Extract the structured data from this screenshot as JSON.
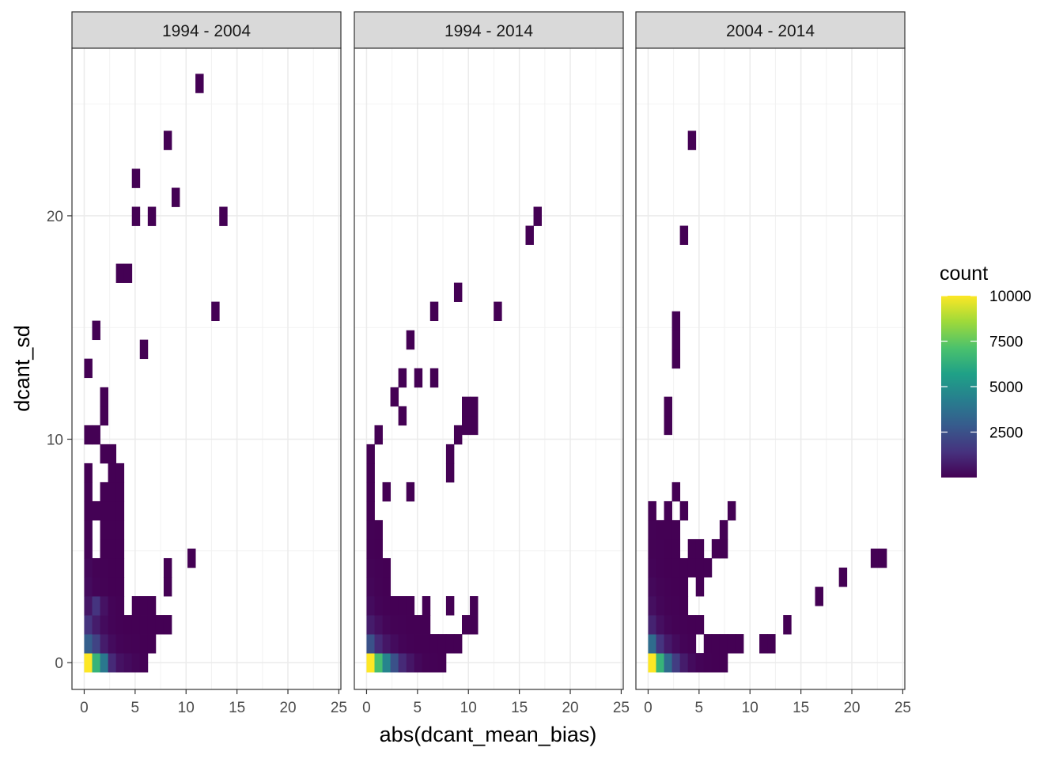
{
  "chart_data": {
    "type": "heatmap",
    "xlabel": "abs(dcant_mean_bias)",
    "ylabel": "dcant_sd",
    "xlim": [
      -1.2,
      25.2
    ],
    "ylim": [
      -1.2,
      27.5
    ],
    "x_ticks": [
      0,
      5,
      10,
      15,
      20,
      25
    ],
    "y_ticks": [
      0,
      10,
      20
    ],
    "bin_width": 0.78,
    "bin_height": 0.85,
    "grid": true,
    "legend": {
      "title": "count",
      "position": "right",
      "ticks": [
        2500,
        5000,
        7500,
        10000
      ],
      "min": 1,
      "max": 10000,
      "palette": [
        "#440154",
        "#46327e",
        "#365c8d",
        "#277f8e",
        "#1fa187",
        "#4ac16d",
        "#a0da39",
        "#fde725"
      ]
    },
    "panels": [
      {
        "strip": "1994 - 2004",
        "bins": [
          [
            0.39,
            0,
            10000
          ],
          [
            0.39,
            0.85,
            3000
          ],
          [
            1.17,
            0,
            6500
          ],
          [
            1.95,
            0,
            4000
          ],
          [
            2.73,
            0,
            1200
          ],
          [
            3.51,
            0,
            500
          ],
          [
            4.29,
            0,
            300
          ],
          [
            5.07,
            0,
            150
          ],
          [
            5.85,
            0,
            20
          ],
          [
            1.17,
            0.85,
            2000
          ],
          [
            1.95,
            0.85,
            800
          ],
          [
            2.73,
            0.85,
            300
          ],
          [
            3.51,
            0.85,
            100
          ],
          [
            4.29,
            0.85,
            50
          ],
          [
            5.07,
            0.85,
            20
          ],
          [
            5.85,
            0.85,
            10
          ],
          [
            6.63,
            0.85,
            5
          ],
          [
            0.39,
            1.7,
            1500
          ],
          [
            1.17,
            1.7,
            800
          ],
          [
            1.95,
            1.7,
            300
          ],
          [
            2.73,
            1.7,
            100
          ],
          [
            3.51,
            1.7,
            30
          ],
          [
            4.29,
            1.7,
            10
          ],
          [
            5.07,
            1.7,
            5
          ],
          [
            5.85,
            1.7,
            5
          ],
          [
            6.63,
            1.7,
            3
          ],
          [
            7.41,
            1.7,
            2
          ],
          [
            8.19,
            1.7,
            2
          ],
          [
            0.39,
            2.55,
            600
          ],
          [
            1.17,
            2.55,
            1500
          ],
          [
            1.95,
            2.55,
            500
          ],
          [
            2.73,
            2.55,
            100
          ],
          [
            3.51,
            2.55,
            20
          ],
          [
            5.07,
            2.55,
            3
          ],
          [
            5.85,
            2.55,
            2
          ],
          [
            6.63,
            2.55,
            2
          ],
          [
            0.39,
            3.4,
            300
          ],
          [
            1.17,
            3.4,
            100
          ],
          [
            1.95,
            3.4,
            50
          ],
          [
            2.73,
            3.4,
            10
          ],
          [
            3.51,
            3.4,
            3
          ],
          [
            8.19,
            3.4,
            1
          ],
          [
            0.39,
            4.25,
            200
          ],
          [
            1.17,
            4.25,
            50
          ],
          [
            1.95,
            4.25,
            20
          ],
          [
            2.73,
            4.25,
            5
          ],
          [
            3.51,
            4.25,
            2
          ],
          [
            8.19,
            4.25,
            1
          ],
          [
            0.39,
            5.1,
            100
          ],
          [
            1.95,
            5.1,
            10
          ],
          [
            2.73,
            5.1,
            5
          ],
          [
            3.51,
            5.1,
            2
          ],
          [
            10.53,
            4.68,
            1
          ],
          [
            0.39,
            5.95,
            50
          ],
          [
            1.95,
            5.95,
            10
          ],
          [
            2.73,
            5.95,
            5
          ],
          [
            3.51,
            5.95,
            1
          ],
          [
            0.39,
            6.8,
            30
          ],
          [
            1.17,
            6.8,
            20
          ],
          [
            1.95,
            6.8,
            5
          ],
          [
            2.73,
            6.8,
            3
          ],
          [
            3.51,
            6.8,
            1
          ],
          [
            0.39,
            7.65,
            20
          ],
          [
            1.95,
            7.65,
            5
          ],
          [
            2.73,
            7.65,
            2
          ],
          [
            3.51,
            7.65,
            1
          ],
          [
            0.39,
            8.5,
            5
          ],
          [
            2.73,
            8.5,
            2
          ],
          [
            3.51,
            8.5,
            1
          ],
          [
            1.95,
            9.35,
            2
          ],
          [
            2.73,
            9.35,
            1
          ],
          [
            0.39,
            10.2,
            2
          ],
          [
            1.17,
            10.2,
            1
          ],
          [
            1.95,
            11.05,
            1
          ],
          [
            1.95,
            11.9,
            1
          ],
          [
            0.39,
            13.18,
            1
          ],
          [
            5.85,
            14.03,
            1
          ],
          [
            1.17,
            14.88,
            1
          ],
          [
            12.87,
            15.73,
            1
          ],
          [
            3.51,
            17.43,
            1
          ],
          [
            4.29,
            17.43,
            1
          ],
          [
            5.07,
            19.98,
            1
          ],
          [
            6.63,
            19.98,
            1
          ],
          [
            13.65,
            19.98,
            1
          ],
          [
            8.97,
            20.83,
            1
          ],
          [
            5.07,
            21.68,
            1
          ],
          [
            8.19,
            23.38,
            1
          ],
          [
            11.31,
            25.93,
            1
          ]
        ]
      },
      {
        "strip": "1994 - 2014",
        "bins": [
          [
            0.39,
            0,
            10000
          ],
          [
            1.17,
            0,
            7000
          ],
          [
            1.95,
            0,
            4500
          ],
          [
            2.73,
            0,
            2500
          ],
          [
            3.51,
            0,
            1200
          ],
          [
            4.29,
            0,
            600
          ],
          [
            5.07,
            0,
            200
          ],
          [
            5.85,
            0,
            50
          ],
          [
            6.63,
            0,
            20
          ],
          [
            7.41,
            0,
            5
          ],
          [
            0.39,
            0.85,
            2500
          ],
          [
            1.17,
            0.85,
            1200
          ],
          [
            1.95,
            0.85,
            600
          ],
          [
            2.73,
            0.85,
            300
          ],
          [
            3.51,
            0.85,
            100
          ],
          [
            4.29,
            0.85,
            40
          ],
          [
            5.07,
            0.85,
            15
          ],
          [
            5.85,
            0.85,
            5
          ],
          [
            6.63,
            0.85,
            3
          ],
          [
            7.41,
            0.85,
            2
          ],
          [
            8.19,
            0.85,
            1
          ],
          [
            8.97,
            0.85,
            1
          ],
          [
            0.39,
            1.7,
            800
          ],
          [
            1.17,
            1.7,
            400
          ],
          [
            1.95,
            1.7,
            150
          ],
          [
            2.73,
            1.7,
            50
          ],
          [
            3.51,
            1.7,
            20
          ],
          [
            4.29,
            1.7,
            10
          ],
          [
            5.07,
            1.7,
            5
          ],
          [
            5.85,
            1.7,
            2
          ],
          [
            9.75,
            1.7,
            1
          ],
          [
            10.53,
            1.7,
            1
          ],
          [
            0.39,
            2.55,
            300
          ],
          [
            1.17,
            2.55,
            100
          ],
          [
            1.95,
            2.55,
            30
          ],
          [
            2.73,
            2.55,
            10
          ],
          [
            3.51,
            2.55,
            5
          ],
          [
            4.29,
            2.55,
            3
          ],
          [
            5.85,
            2.55,
            2
          ],
          [
            8.19,
            2.55,
            1
          ],
          [
            10.53,
            2.55,
            1
          ],
          [
            0.39,
            3.4,
            150
          ],
          [
            1.17,
            3.4,
            50
          ],
          [
            1.95,
            3.4,
            10
          ],
          [
            0.39,
            4.25,
            80
          ],
          [
            1.17,
            4.25,
            20
          ],
          [
            1.95,
            4.25,
            5
          ],
          [
            0.39,
            5.1,
            40
          ],
          [
            1.17,
            5.1,
            10
          ],
          [
            0.39,
            5.95,
            20
          ],
          [
            1.17,
            5.95,
            5
          ],
          [
            0.39,
            6.8,
            10
          ],
          [
            0.39,
            7.65,
            5
          ],
          [
            1.95,
            7.65,
            1
          ],
          [
            4.29,
            7.65,
            1
          ],
          [
            0.39,
            8.5,
            3
          ],
          [
            8.19,
            8.5,
            1
          ],
          [
            8.19,
            9.35,
            1
          ],
          [
            8.97,
            10.2,
            1
          ],
          [
            0.39,
            9.35,
            2
          ],
          [
            1.17,
            10.2,
            1
          ],
          [
            9.75,
            10.63,
            1
          ],
          [
            10.53,
            10.63,
            1
          ],
          [
            9.75,
            11.48,
            1
          ],
          [
            10.53,
            11.48,
            1
          ],
          [
            3.51,
            11.05,
            1
          ],
          [
            2.73,
            11.9,
            1
          ],
          [
            3.51,
            12.75,
            1
          ],
          [
            5.07,
            12.75,
            1
          ],
          [
            6.63,
            12.75,
            1
          ],
          [
            4.29,
            14.45,
            1
          ],
          [
            6.63,
            15.73,
            1
          ],
          [
            12.87,
            15.73,
            1
          ],
          [
            8.97,
            16.58,
            1
          ],
          [
            16.0,
            19.13,
            1
          ],
          [
            16.78,
            19.98,
            1
          ]
        ]
      },
      {
        "strip": "2004 - 2014",
        "bins": [
          [
            0.39,
            0,
            10000
          ],
          [
            1.17,
            0,
            6500
          ],
          [
            1.95,
            0,
            3500
          ],
          [
            2.73,
            0,
            1800
          ],
          [
            3.51,
            0,
            800
          ],
          [
            4.29,
            0,
            300
          ],
          [
            5.07,
            0,
            100
          ],
          [
            5.85,
            0,
            20
          ],
          [
            6.63,
            0,
            5
          ],
          [
            7.41,
            0,
            2
          ],
          [
            0.39,
            0.85,
            3500
          ],
          [
            1.17,
            0.85,
            1500
          ],
          [
            1.95,
            0.85,
            700
          ],
          [
            2.73,
            0.85,
            300
          ],
          [
            3.51,
            0.85,
            100
          ],
          [
            4.29,
            0.85,
            20
          ],
          [
            5.85,
            0.85,
            3
          ],
          [
            6.63,
            0.85,
            2
          ],
          [
            7.41,
            0.85,
            2
          ],
          [
            8.19,
            0.85,
            2
          ],
          [
            8.97,
            0.85,
            1
          ],
          [
            11.31,
            0.85,
            1
          ],
          [
            12.09,
            0.85,
            1
          ],
          [
            0.39,
            1.7,
            1000
          ],
          [
            1.17,
            1.7,
            400
          ],
          [
            1.95,
            1.7,
            150
          ],
          [
            2.73,
            1.7,
            50
          ],
          [
            3.51,
            1.7,
            20
          ],
          [
            4.29,
            1.7,
            10
          ],
          [
            5.07,
            1.7,
            5
          ],
          [
            13.65,
            1.7,
            1
          ],
          [
            0.39,
            2.55,
            400
          ],
          [
            1.17,
            2.55,
            150
          ],
          [
            1.95,
            2.55,
            50
          ],
          [
            2.73,
            2.55,
            20
          ],
          [
            3.51,
            2.55,
            5
          ],
          [
            16.78,
            2.97,
            1
          ],
          [
            0.39,
            3.4,
            200
          ],
          [
            1.17,
            3.4,
            80
          ],
          [
            1.95,
            3.4,
            20
          ],
          [
            2.73,
            3.4,
            5
          ],
          [
            3.51,
            3.4,
            2
          ],
          [
            5.07,
            3.4,
            1
          ],
          [
            19.12,
            3.83,
            1
          ],
          [
            0.39,
            4.25,
            100
          ],
          [
            1.17,
            4.25,
            30
          ],
          [
            1.95,
            4.25,
            10
          ],
          [
            2.73,
            4.25,
            5
          ],
          [
            3.51,
            4.25,
            2
          ],
          [
            4.29,
            4.25,
            1
          ],
          [
            5.07,
            4.25,
            1
          ],
          [
            5.85,
            4.25,
            1
          ],
          [
            22.24,
            4.68,
            1
          ],
          [
            23.02,
            4.68,
            1
          ],
          [
            0.39,
            5.1,
            50
          ],
          [
            1.17,
            5.1,
            20
          ],
          [
            1.95,
            5.1,
            5
          ],
          [
            2.73,
            5.1,
            2
          ],
          [
            4.29,
            5.1,
            1
          ],
          [
            5.07,
            5.1,
            1
          ],
          [
            6.63,
            5.1,
            1
          ],
          [
            7.41,
            5.1,
            1
          ],
          [
            0.39,
            5.95,
            20
          ],
          [
            1.17,
            5.95,
            10
          ],
          [
            1.95,
            5.95,
            5
          ],
          [
            2.73,
            5.95,
            1
          ],
          [
            7.41,
            5.95,
            1
          ],
          [
            0.39,
            6.8,
            5
          ],
          [
            1.95,
            6.8,
            2
          ],
          [
            3.51,
            6.8,
            1
          ],
          [
            8.19,
            6.8,
            1
          ],
          [
            2.73,
            7.65,
            1
          ],
          [
            1.95,
            10.63,
            1
          ],
          [
            1.95,
            11.48,
            1
          ],
          [
            2.73,
            13.6,
            1
          ],
          [
            2.73,
            14.45,
            1
          ],
          [
            2.73,
            15.3,
            1
          ],
          [
            3.51,
            19.13,
            1
          ],
          [
            4.29,
            23.38,
            1
          ]
        ]
      }
    ]
  }
}
